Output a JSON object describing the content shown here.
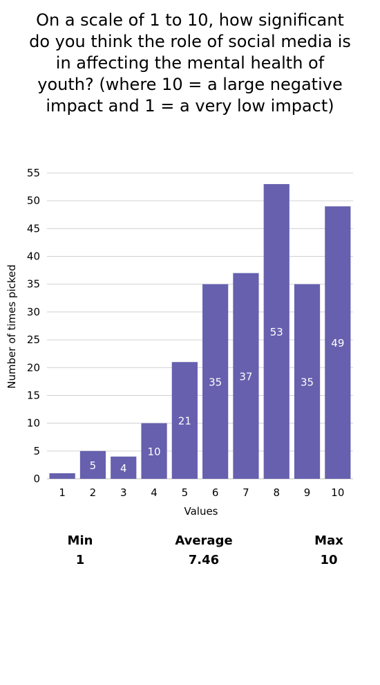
{
  "chart_data": {
    "type": "bar",
    "title": "On a scale of 1 to 10, how significant do you think the role of social media is in affecting the mental health of youth? (where 10 = a large negative impact and 1 = a very low impact)",
    "xlabel": "Values",
    "ylabel": "Number of times picked",
    "categories": [
      "1",
      "2",
      "3",
      "4",
      "5",
      "6",
      "7",
      "8",
      "9",
      "10"
    ],
    "values": [
      1,
      5,
      4,
      10,
      21,
      35,
      37,
      53,
      35,
      49
    ],
    "data_labels": [
      "",
      "5",
      "4",
      "10",
      "21",
      "35",
      "37",
      "53",
      "35",
      "49"
    ],
    "ylim": [
      0,
      55
    ],
    "yticks": [
      0,
      5,
      10,
      15,
      20,
      25,
      30,
      35,
      40,
      45,
      50,
      55
    ],
    "grid": true,
    "bar_color": "#6660AE",
    "label_color": "#ffffff"
  },
  "summary": {
    "min_label": "Min",
    "min_value": "1",
    "avg_label": "Average",
    "avg_value": "7.46",
    "max_label": "Max",
    "max_value": "10"
  }
}
